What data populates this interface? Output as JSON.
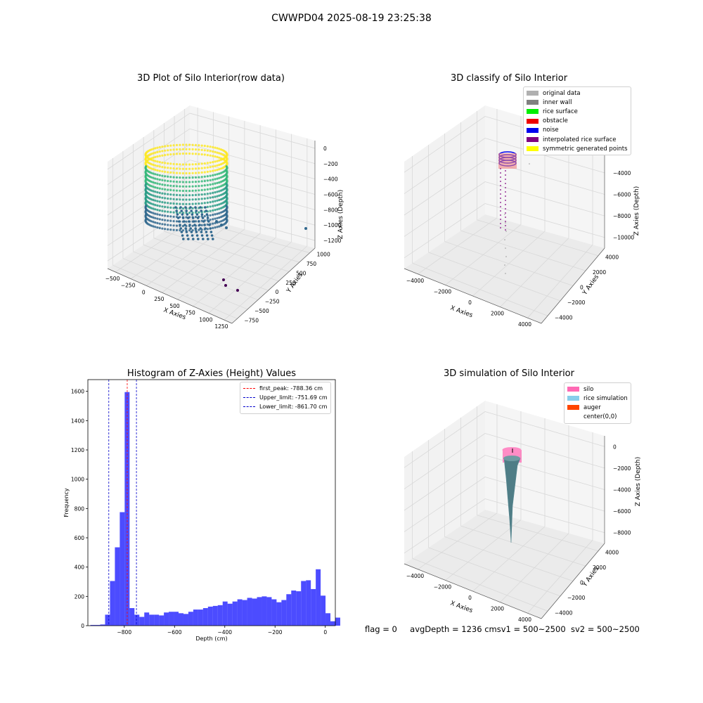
{
  "suptitle": "CWWPD04 2025-08-19 23:25:38",
  "panel_raw": {
    "title": "3D Plot of Silo Interior(row data)",
    "xlabel": "X Axies",
    "ylabel": "Y Axies",
    "zlabel": "Z Axies (Depth)",
    "x_ticks": [
      "−500",
      "−250",
      "0",
      "250",
      "500",
      "750",
      "1000",
      "1250"
    ],
    "y_ticks": [
      "−750",
      "−500",
      "−250",
      "0",
      "250",
      "500",
      "750",
      "1000"
    ],
    "z_ticks": [
      "0",
      "−200",
      "−400",
      "−600",
      "−800",
      "−1000",
      "−1200"
    ],
    "colormap": [
      "#440154",
      "#31688e",
      "#35b779",
      "#fde725"
    ]
  },
  "panel_classify": {
    "title": "3D classify of Silo Interior",
    "xlabel": "X Axies",
    "ylabel": "Y Axies",
    "zlabel": "Z Axies (Depth)",
    "x_ticks": [
      "−4000",
      "−2000",
      "0",
      "2000",
      "4000"
    ],
    "y_ticks": [
      "−4000",
      "−2000",
      "0",
      "2000",
      "4000"
    ],
    "z_ticks": [
      "−2000",
      "−4000",
      "−6000",
      "−8000",
      "−10000"
    ],
    "z_top_tick": "0",
    "legend": [
      {
        "label": "original data",
        "color": "#b0b0b0"
      },
      {
        "label": "inner wall",
        "color": "#808080"
      },
      {
        "label": "rice surface",
        "color": "#00ee00"
      },
      {
        "label": "obstacle",
        "color": "#ee0000"
      },
      {
        "label": "noise",
        "color": "#0000ee"
      },
      {
        "label": "interpolated rice surface",
        "color": "#800080"
      },
      {
        "label": "symmetric generated points",
        "color": "#ffff00"
      }
    ]
  },
  "panel_sim": {
    "title": "3D simulation of Silo Interior",
    "xlabel": "X Axies",
    "ylabel": "Y Axies",
    "zlabel": "Z Axies (Depth)",
    "x_ticks": [
      "−4000",
      "−2000",
      "0",
      "2000",
      "4000"
    ],
    "y_ticks": [
      "−4000",
      "−2000",
      "0",
      "2000",
      "4000"
    ],
    "z_ticks": [
      "0",
      "−2000",
      "−4000",
      "−6000",
      "−8000"
    ],
    "legend": [
      {
        "label": "silo",
        "color": "#ff69b4"
      },
      {
        "label": "rice simulation",
        "color": "#87ceeb"
      },
      {
        "label": "auger",
        "color": "#ff4500"
      },
      {
        "label": "center(0,0)",
        "color": "#ffffff"
      }
    ]
  },
  "chart_data": {
    "type": "bar",
    "title": "Histogram of Z-Axies (Height) Values",
    "xlabel": "Depth (cm)",
    "ylabel": "Frequency",
    "xlim": [
      -945,
      40
    ],
    "ylim": [
      0,
      1680
    ],
    "x_ticks": [
      -800,
      -600,
      -400,
      -200,
      0
    ],
    "x_tick_labels": [
      "−800",
      "−600",
      "−400",
      "−200",
      "0"
    ],
    "y_ticks": [
      0,
      200,
      400,
      600,
      800,
      1000,
      1200,
      1400,
      1600
    ],
    "bar_color": "#0000ff",
    "bin_edges_start": -935,
    "bin_width": 19.5,
    "values": [
      5,
      5,
      8,
      75,
      305,
      535,
      775,
      1595,
      120,
      75,
      60,
      90,
      75,
      75,
      70,
      90,
      95,
      95,
      85,
      80,
      95,
      110,
      110,
      120,
      130,
      135,
      140,
      165,
      150,
      165,
      180,
      175,
      190,
      185,
      195,
      200,
      195,
      180,
      160,
      175,
      215,
      240,
      235,
      305,
      310,
      250,
      385,
      205,
      85,
      30,
      55
    ],
    "vlines": [
      {
        "label": "first_peak: -788.36 cm",
        "x": -788.36,
        "color": "#ff0000"
      },
      {
        "label": "Upper_limit: -751.69 cm",
        "x": -751.69,
        "color": "#0000cc"
      },
      {
        "label": "Lower_limit: -861.70 cm",
        "x": -861.7,
        "color": "#0000cc"
      }
    ],
    "legend_position": "top-right"
  },
  "footer": {
    "flag": "flag = 0",
    "avg_depth": "avgDepth = 1236 cm",
    "sv1": "sv1 = 500~2500",
    "sv2": "sv2 = 500~2500"
  }
}
